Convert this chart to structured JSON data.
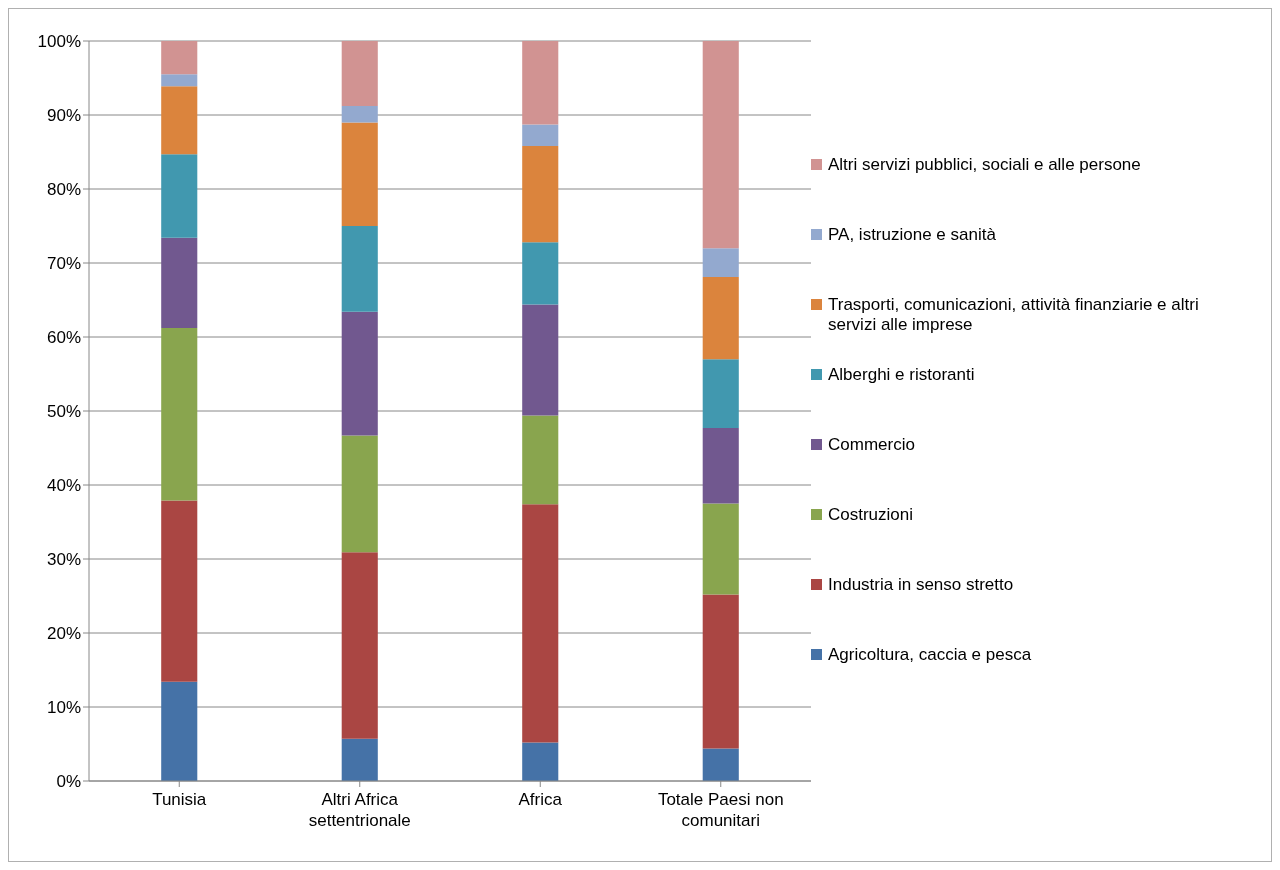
{
  "chart_data": {
    "type": "bar",
    "stacked": true,
    "categories": [
      "Tunisia",
      "Altri Africa settentrionale",
      "Africa",
      "Totale Paesi non comunitari"
    ],
    "ylim": [
      0,
      100
    ],
    "yticks": [
      {
        "value": 0,
        "label": "0%"
      },
      {
        "value": 10,
        "label": "10%"
      },
      {
        "value": 20,
        "label": "20%"
      },
      {
        "value": 30,
        "label": "30%"
      },
      {
        "value": 40,
        "label": "40%"
      },
      {
        "value": 50,
        "label": "50%"
      },
      {
        "value": 60,
        "label": "60%"
      },
      {
        "value": 70,
        "label": "70%"
      },
      {
        "value": 80,
        "label": "80%"
      },
      {
        "value": 90,
        "label": "90%"
      },
      {
        "value": 100,
        "label": "100%"
      }
    ],
    "grid": "y",
    "legend": "right",
    "series": [
      {
        "name": "Agricoltura, caccia e pesca",
        "color": "#4572a7",
        "values": [
          13.4,
          5.7,
          5.2,
          4.4
        ]
      },
      {
        "name": "Industria in senso stretto",
        "color": "#aa4643",
        "values": [
          24.5,
          25.2,
          32.2,
          20.8
        ]
      },
      {
        "name": "Costruzioni",
        "color": "#89a54e",
        "values": [
          23.3,
          15.8,
          12.0,
          12.3
        ]
      },
      {
        "name": "Commercio",
        "color": "#71588f",
        "values": [
          12.2,
          16.7,
          15.0,
          10.2
        ]
      },
      {
        "name": "Alberghi e ristoranti",
        "color": "#4198af",
        "values": [
          11.3,
          11.6,
          8.4,
          9.3
        ]
      },
      {
        "name": "Trasporti, comunicazioni, attività finanziarie e altri servizi alle imprese",
        "color": "#db843d",
        "values": [
          9.2,
          14.0,
          13.0,
          11.1
        ]
      },
      {
        "name": "PA, istruzione e sanità",
        "color": "#93a9cf",
        "values": [
          1.6,
          2.2,
          2.9,
          3.9
        ]
      },
      {
        "name": "Altri servizi pubblici, sociali e alle persone",
        "color": "#d19392",
        "values": [
          4.5,
          8.8,
          11.3,
          28.0
        ]
      }
    ]
  }
}
